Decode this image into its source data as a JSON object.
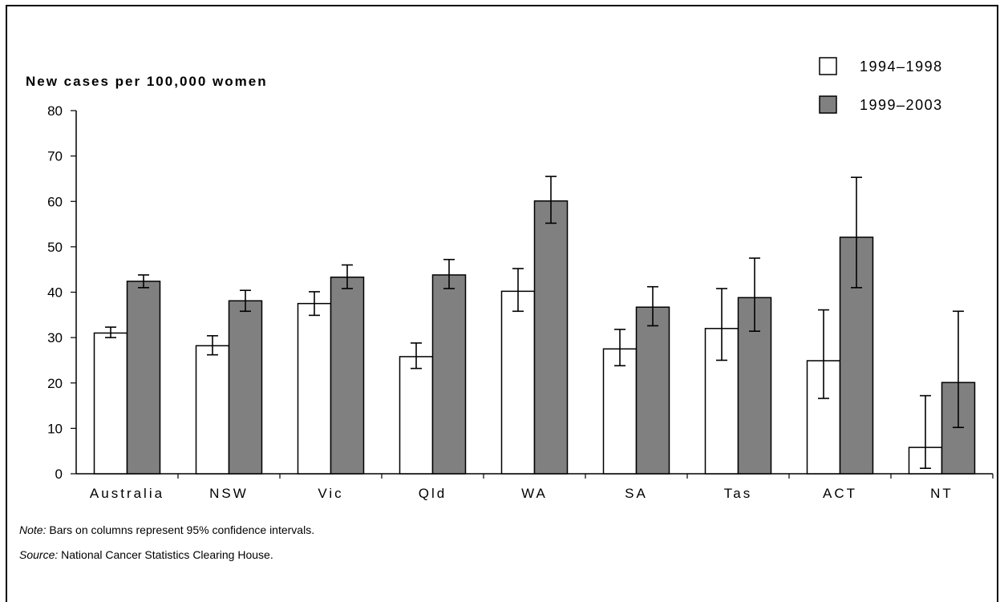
{
  "chart_data": {
    "type": "bar",
    "ylabel": "New cases per 100,000 women",
    "xlabel": "",
    "ylim": [
      0,
      80
    ],
    "yticks": [
      0,
      10,
      20,
      30,
      40,
      50,
      60,
      70,
      80
    ],
    "grid": false,
    "legend_position": "top-right",
    "categories": [
      "Australia",
      "NSW",
      "Vic",
      "Qld",
      "WA",
      "SA",
      "Tas",
      "ACT",
      "NT"
    ],
    "series": [
      {
        "name": "1994–1998",
        "color": "#ffffff",
        "values": [
          31.0,
          28.2,
          37.5,
          25.8,
          40.2,
          27.5,
          32.0,
          24.9,
          5.8
        ],
        "ci_low": [
          30.0,
          26.2,
          34.9,
          23.2,
          35.8,
          23.8,
          25.0,
          16.6,
          1.2
        ],
        "ci_high": [
          32.3,
          30.4,
          40.1,
          28.8,
          45.2,
          31.8,
          40.8,
          36.1,
          17.2
        ]
      },
      {
        "name": "1999–2003",
        "color": "#808080",
        "values": [
          42.4,
          38.1,
          43.3,
          43.8,
          60.1,
          36.7,
          38.8,
          52.1,
          20.1
        ],
        "ci_low": [
          41.0,
          35.8,
          40.8,
          40.8,
          55.2,
          32.6,
          31.4,
          41.0,
          10.2
        ],
        "ci_high": [
          43.8,
          40.4,
          46.0,
          47.2,
          65.5,
          41.2,
          47.5,
          65.3,
          35.8
        ]
      }
    ]
  },
  "notes": {
    "note_label": "Note:",
    "note_text": " Bars on columns represent 95% confidence intervals.",
    "source_label": "Source:",
    "source_text": " National Cancer Statistics Clearing House."
  }
}
